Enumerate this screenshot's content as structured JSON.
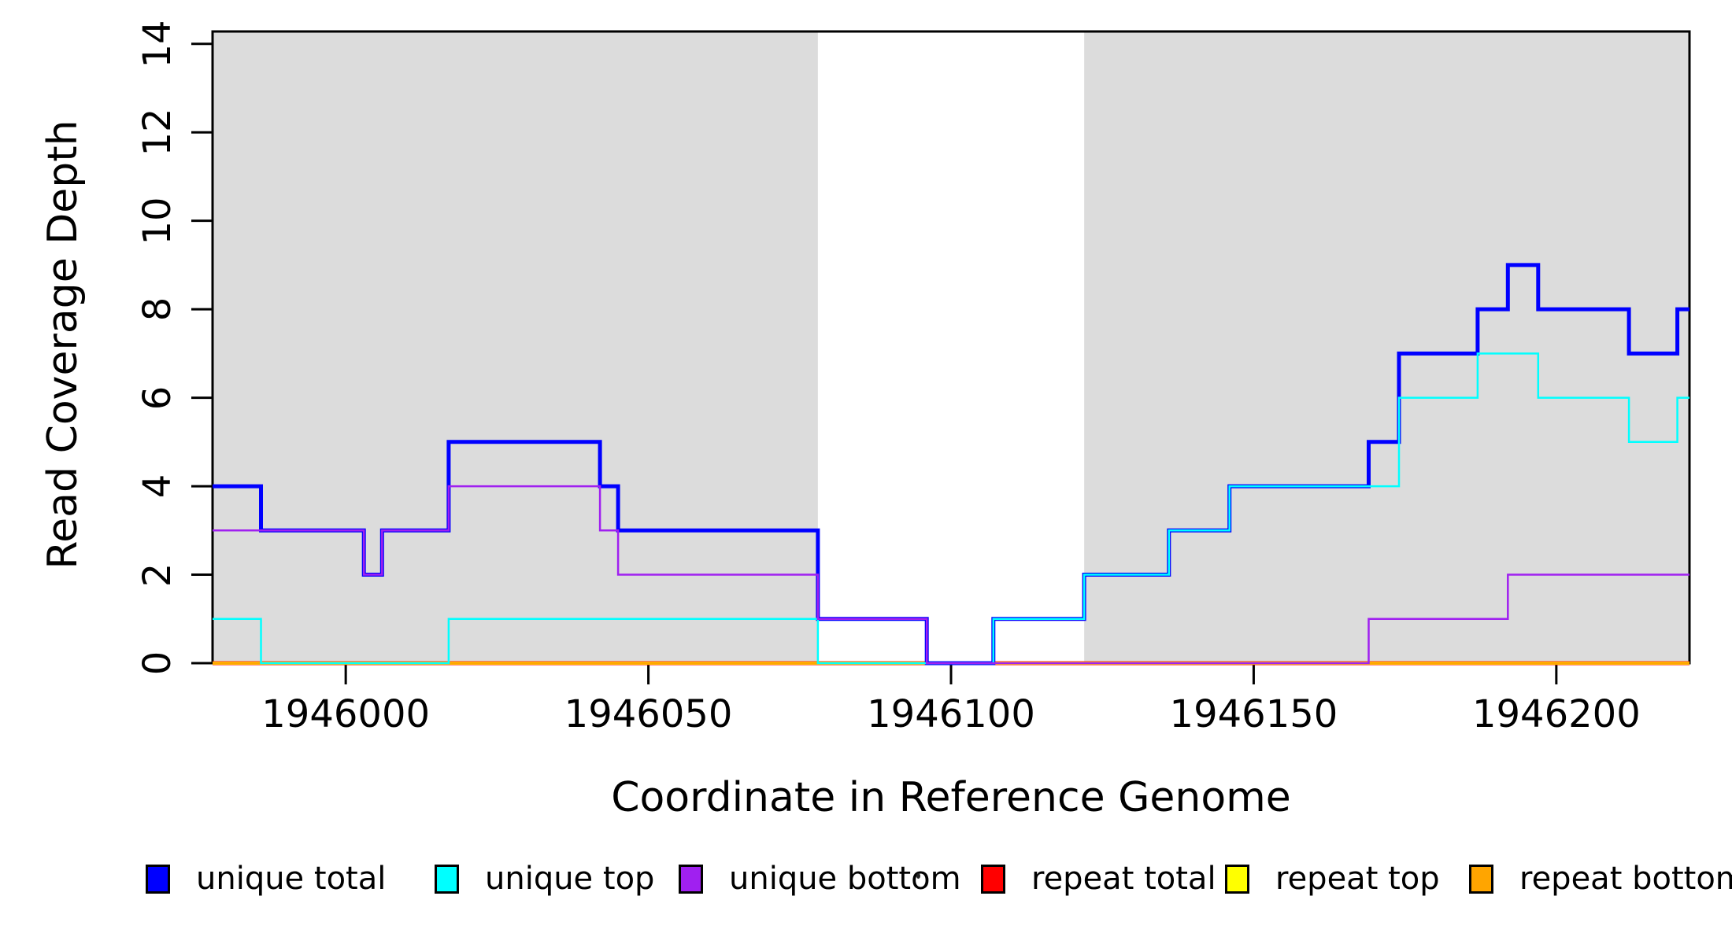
{
  "chart_data": {
    "type": "line",
    "subtype": "step",
    "title": "",
    "xlabel": "Coordinate in Reference Genome",
    "ylabel": "Read Coverage Depth",
    "xlim": [
      1945978,
      1946222
    ],
    "ylim": [
      0,
      14.28
    ],
    "x_ticks": [
      1946000,
      1946050,
      1946100,
      1946150,
      1946200
    ],
    "y_ticks": [
      0,
      2,
      4,
      6,
      8,
      10,
      12,
      14
    ],
    "grid": false,
    "shaded_regions": [
      {
        "x0": 1945978,
        "x1": 1946078,
        "color": "#DCDCDC",
        "meaning": "shaded-region"
      },
      {
        "x0": 1946122,
        "x1": 1946222,
        "color": "#DCDCDC",
        "meaning": "shaded-region"
      }
    ],
    "breakpoints": [
      1945978,
      1945986,
      1946003,
      1946006,
      1946017,
      1946042,
      1946045,
      1946078,
      1946096,
      1946107,
      1946122,
      1946136,
      1946146,
      1946169,
      1946174,
      1946187,
      1946192,
      1946197,
      1946212,
      1946220,
      1946222
    ],
    "series": [
      {
        "name": "repeat total",
        "color": "#FF0000",
        "width": 5,
        "values": [
          0,
          0,
          0,
          0,
          0,
          0,
          0,
          0,
          0,
          0,
          0,
          0,
          0,
          0,
          0,
          0,
          0,
          0,
          0,
          0
        ]
      },
      {
        "name": "repeat top",
        "color": "#FFFF00",
        "width": 4,
        "values": [
          0,
          0,
          0,
          0,
          0,
          0,
          0,
          0,
          0,
          0,
          0,
          0,
          0,
          0,
          0,
          0,
          0,
          0,
          0,
          0
        ]
      },
      {
        "name": "repeat bottom",
        "color": "#FFA500",
        "width": 3.5,
        "values": [
          0,
          0,
          0,
          0,
          0,
          0,
          0,
          0,
          0,
          0,
          0,
          0,
          0,
          0,
          0,
          0,
          0,
          0,
          0,
          0
        ]
      },
      {
        "name": "unique total",
        "color": "#0000FF",
        "width": 5,
        "values": [
          4,
          3,
          2,
          3,
          5,
          4,
          3,
          1,
          0,
          1,
          2,
          3,
          4,
          5,
          7,
          8,
          9,
          8,
          7,
          8
        ]
      },
      {
        "name": "unique top",
        "color": "#00FFFF",
        "width": 2.5,
        "values": [
          1,
          0,
          0,
          0,
          1,
          1,
          1,
          0,
          0,
          1,
          2,
          3,
          4,
          4,
          6,
          7,
          7,
          6,
          5,
          6
        ]
      },
      {
        "name": "unique bottom",
        "color": "#A020F0",
        "width": 2.5,
        "values": [
          3,
          3,
          2,
          3,
          4,
          3,
          2,
          1,
          0,
          0,
          0,
          0,
          0,
          1,
          1,
          1,
          2,
          2,
          2,
          2
        ]
      }
    ],
    "legend": [
      {
        "label": "unique total",
        "color": "#0000FF"
      },
      {
        "label": "unique top",
        "color": "#00FFFF"
      },
      {
        "label": "unique bottom",
        "color": "#A020F0"
      },
      {
        "label": "repeat total",
        "color": "#FF0000"
      },
      {
        "label": "repeat top",
        "color": "#FFFF00"
      },
      {
        "label": "repeat bottom",
        "color": "#FFA500"
      }
    ],
    "legend_position": "bottom",
    "axis_color": "#000000"
  }
}
